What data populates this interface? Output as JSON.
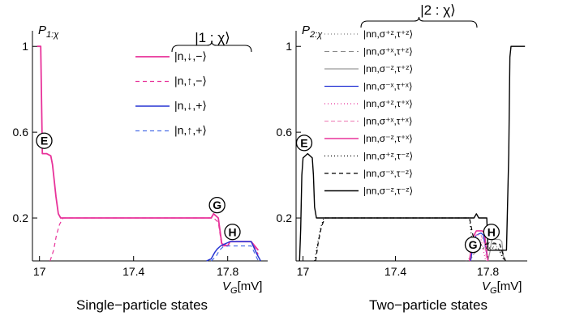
{
  "chart_data": [
    {
      "type": "line",
      "caption": "Single−particle states",
      "ylabel_main": "P",
      "ylabel_sub": "1:χ",
      "xlabel_main": "V",
      "xlabel_sub": "G",
      "xlabel_unit": "[mV]",
      "legend_title": "|1 : χ⟩",
      "xlim": [
        16.97,
        17.97
      ],
      "ylim": [
        0,
        1.05
      ],
      "xticks": [
        {
          "v": 17.0,
          "label": "17"
        },
        {
          "v": 17.4,
          "label": "17.4"
        },
        {
          "v": 17.8,
          "label": "17.8"
        }
      ],
      "yticks": [
        {
          "v": 0.2,
          "label": "0.2"
        },
        {
          "v": 0.6,
          "label": "0.6"
        },
        {
          "v": 1.0,
          "label": "1"
        }
      ],
      "annotations": [
        {
          "label": "E",
          "x": 17.02,
          "y": 0.56
        },
        {
          "label": "G",
          "x": 17.755,
          "y": 0.26
        },
        {
          "label": "H",
          "x": 17.82,
          "y": 0.135
        }
      ],
      "series": [
        {
          "name": "|n,↓,−⟩",
          "color": "#e8339a",
          "dash": "solid",
          "width": 1.8,
          "x": [
            16.99,
            17.005,
            17.012,
            17.03,
            17.048,
            17.055,
            17.07,
            17.08,
            17.09,
            17.72,
            17.73,
            17.74,
            17.76,
            17.775,
            17.8,
            17.81,
            17.9,
            17.93
          ],
          "y": [
            1.0,
            1.0,
            0.5,
            0.5,
            0.49,
            0.45,
            0.3,
            0.22,
            0.2,
            0.2,
            0.2,
            0.22,
            0.2,
            0.08,
            0.07,
            0.09,
            0.09,
            0.05
          ]
        },
        {
          "name": "|n,↑,−⟩",
          "color": "#e8339a",
          "dash": "5,4",
          "width": 1.2,
          "x": [
            17.045,
            17.06,
            17.072,
            17.085,
            17.1,
            17.72,
            17.74,
            17.76,
            17.775,
            17.8,
            17.81,
            17.9,
            17.93
          ],
          "y": [
            0.0,
            0.05,
            0.12,
            0.17,
            0.2,
            0.2,
            0.2,
            0.18,
            0.07,
            0.07,
            0.09,
            0.09,
            0.03
          ]
        },
        {
          "name": "|n,↓,+⟩",
          "color": "#2634d4",
          "dash": "solid",
          "width": 1.5,
          "x": [
            17.71,
            17.73,
            17.745,
            17.755,
            17.77,
            17.78,
            17.8,
            17.81,
            17.9,
            17.925,
            17.94
          ],
          "y": [
            0.0,
            0.01,
            0.04,
            0.055,
            0.07,
            0.075,
            0.085,
            0.09,
            0.09,
            0.03,
            0.0
          ]
        },
        {
          "name": "|n,↑,+⟩",
          "color": "#4d6fe6",
          "dash": "5,4",
          "width": 1.2,
          "x": [
            17.73,
            17.75,
            17.765,
            17.78,
            17.8,
            17.82,
            17.9,
            17.93
          ],
          "y": [
            0.0,
            0.02,
            0.05,
            0.065,
            0.07,
            0.07,
            0.07,
            0.0
          ]
        }
      ]
    },
    {
      "type": "line",
      "caption": "Two−particle states",
      "ylabel_main": "P",
      "ylabel_sub": "2:χ",
      "xlabel_main": "V",
      "xlabel_sub": "G",
      "xlabel_unit": "[mV]",
      "legend_title": "|2 : χ⟩",
      "xlim": [
        16.97,
        17.97
      ],
      "ylim": [
        0,
        1.05
      ],
      "xticks": [
        {
          "v": 17.0,
          "label": "17"
        },
        {
          "v": 17.4,
          "label": "17.4"
        },
        {
          "v": 17.8,
          "label": "17.8"
        }
      ],
      "yticks": [
        {
          "v": 0.2,
          "label": "0.2"
        },
        {
          "v": 0.6,
          "label": "0.6"
        },
        {
          "v": 1.0,
          "label": "1"
        }
      ],
      "annotations": [
        {
          "label": "E",
          "x": 17.005,
          "y": 0.55
        },
        {
          "label": "G",
          "x": 17.735,
          "y": 0.075
        },
        {
          "label": "H",
          "x": 17.815,
          "y": 0.135
        }
      ],
      "series": [
        {
          "name": "|nn,σ⁺ᶻ,τ⁺ᶻ⟩",
          "color": "#666666",
          "dash": "1,3",
          "width": 1.0,
          "x": [
            17.705,
            17.73,
            17.75,
            17.77,
            17.79,
            17.8,
            17.84,
            17.86,
            17.88
          ],
          "y": [
            0.0,
            0.02,
            0.05,
            0.06,
            0.065,
            0.065,
            0.065,
            0.02,
            0.0
          ]
        },
        {
          "name": "|nn,σ⁺ˣ,τ⁺ᶻ⟩",
          "color": "#888888",
          "dash": "6,4",
          "width": 1.0,
          "x": [
            17.72,
            17.745,
            17.76,
            17.78,
            17.8,
            17.83,
            17.855,
            17.88
          ],
          "y": [
            0.0,
            0.04,
            0.07,
            0.08,
            0.085,
            0.085,
            0.04,
            0.0
          ]
        },
        {
          "name": "|nn,σ⁻ᶻ,τ⁺ᶻ⟩",
          "color": "#999999",
          "dash": "solid",
          "width": 1.2,
          "x": [
            17.8,
            17.81,
            17.815,
            17.82,
            17.85,
            17.86,
            17.865,
            17.87
          ],
          "y": [
            0.0,
            0.05,
            0.09,
            0.1,
            0.1,
            0.09,
            0.04,
            0.0
          ]
        },
        {
          "name": "|nn,σ⁻ˣ,τ⁺ˣ⟩",
          "color": "#2634d4",
          "dash": "solid",
          "width": 1.3,
          "x": [
            17.725,
            17.74,
            17.75,
            17.77,
            17.78,
            17.79,
            17.8
          ],
          "y": [
            0.0,
            0.1,
            0.12,
            0.13,
            0.12,
            0.06,
            0.0
          ]
        },
        {
          "name": "|nn,σ⁺ᶻ,τ⁺ˣ⟩",
          "color": "#e8339a",
          "dash": "1,3",
          "width": 1.2,
          "x": [
            17.72,
            17.73,
            17.74,
            17.76,
            17.77,
            17.78,
            17.79
          ],
          "y": [
            0.0,
            0.08,
            0.1,
            0.1,
            0.1,
            0.05,
            0.0
          ]
        },
        {
          "name": "|nn,σ⁺ˣ,τ⁺ˣ⟩",
          "color": "#f090c0",
          "dash": "5,3",
          "width": 1.2,
          "x": [
            17.72,
            17.735,
            17.745,
            17.77,
            17.785,
            17.795
          ],
          "y": [
            0.0,
            0.1,
            0.12,
            0.12,
            0.08,
            0.0
          ]
        },
        {
          "name": "|nn,σ⁻ᶻ,τ⁺ˣ⟩",
          "color": "#e8339a",
          "dash": "solid",
          "width": 1.6,
          "x": [
            17.72,
            17.73,
            17.74,
            17.75,
            17.775,
            17.785,
            17.79,
            17.8
          ],
          "y": [
            0.0,
            0.08,
            0.12,
            0.14,
            0.14,
            0.13,
            0.08,
            0.0
          ]
        },
        {
          "name": "|nn,σ⁺ᶻ,τ⁻ᶻ⟩",
          "color": "#000000",
          "dash": "1,3",
          "width": 1.2,
          "x": [
            17.05,
            17.06,
            17.075,
            17.09,
            17.72,
            17.73,
            17.745,
            17.76,
            17.79,
            17.82,
            17.85,
            17.87
          ],
          "y": [
            0.0,
            0.06,
            0.15,
            0.2,
            0.2,
            0.1,
            0.05,
            0.055,
            0.06,
            0.06,
            0.05,
            0.0
          ]
        },
        {
          "name": "|nn,σ⁻ˣ,τ⁻ᶻ⟩",
          "color": "#000000",
          "dash": "5,4",
          "width": 1.2,
          "x": [
            17.055,
            17.065,
            17.08,
            17.095,
            17.72,
            17.735,
            17.75,
            17.8,
            17.85,
            17.875
          ],
          "y": [
            0.0,
            0.08,
            0.16,
            0.2,
            0.2,
            0.12,
            0.07,
            0.08,
            0.08,
            0.0
          ]
        },
        {
          "name": "|nn,σ⁻ᶻ,τ⁻ᶻ⟩",
          "color": "#000000",
          "dash": "solid",
          "width": 1.4,
          "x": [
            16.985,
            16.99,
            16.995,
            17.0,
            17.02,
            17.04,
            17.045,
            17.05,
            17.058,
            17.065,
            17.07,
            17.74,
            17.75,
            17.76,
            17.78,
            17.795,
            17.8,
            17.84,
            17.88,
            17.89,
            17.895,
            17.9,
            17.96
          ],
          "y": [
            0.0,
            0.15,
            0.4,
            0.48,
            0.5,
            0.48,
            0.4,
            0.25,
            0.2,
            0.2,
            0.2,
            0.2,
            0.22,
            0.2,
            0.2,
            0.2,
            0.05,
            0.05,
            0.05,
            0.5,
            0.95,
            1.0,
            1.0
          ]
        }
      ]
    }
  ]
}
